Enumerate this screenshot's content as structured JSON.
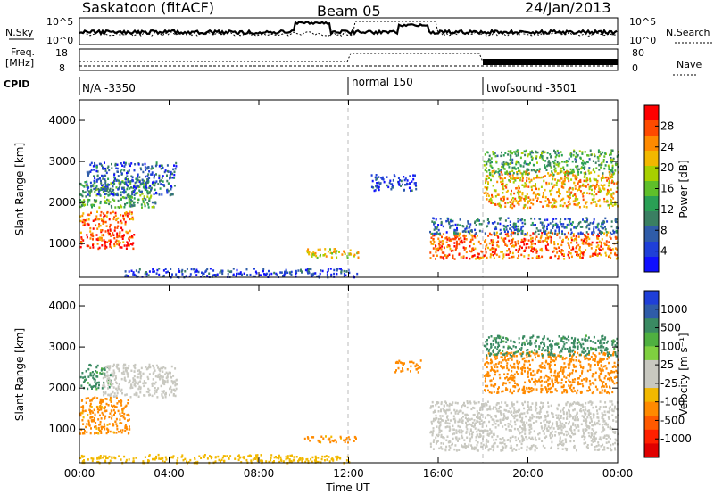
{
  "header": {
    "station": "Saskatoon (fitACF)",
    "beam": "Beam 05",
    "date": "24/Jan/2013"
  },
  "top_panels": {
    "nsky_label": "N.Sky",
    "nsky_ticks": [
      "10^5",
      "10^0"
    ],
    "nsearch_label": "N.Search",
    "nsearch_ticks": [
      "10^5",
      "10^0"
    ],
    "freq_label": "Freq.",
    "freq_unit": "[MHz]",
    "freq_ticks": [
      "18",
      "8"
    ],
    "nave_label": "Nave",
    "nave_ticks": [
      "80",
      "0"
    ],
    "cpid_label": "CPID",
    "cpid_segments": [
      {
        "label": "N/A -3350",
        "start_h": 0,
        "end_h": 12
      },
      {
        "label": "normal 150",
        "start_h": 12,
        "end_h": 18
      },
      {
        "label": "twofsound -3501",
        "start_h": 18,
        "end_h": 24
      }
    ]
  },
  "chart_data": [
    {
      "type": "heatmap",
      "name": "power",
      "ylabel": "Slant Range [km]",
      "ylim": [
        180,
        4500
      ],
      "xlim": [
        0,
        24
      ],
      "y_ticks": [
        1000,
        2000,
        3000,
        4000
      ],
      "colorbar_label": "Power [dB]",
      "colorbar_ticks": [
        "28",
        "24",
        "20",
        "16",
        "12",
        "8",
        "4"
      ],
      "colorbar_colors": [
        "#ff0000",
        "#ff4a00",
        "#ff8a00",
        "#f2b800",
        "#a8d000",
        "#5fbf2a",
        "#2aa055",
        "#3a7f62",
        "#2f5ca8",
        "#1f3fd8",
        "#1010ff"
      ],
      "regions": [
        {
          "x": [
            0.0,
            2.4
          ],
          "y": [
            900,
            1800
          ],
          "value": 26
        },
        {
          "x": [
            0.0,
            3.4
          ],
          "y": [
            1900,
            2600
          ],
          "value": 14
        },
        {
          "x": [
            0.3,
            4.3
          ],
          "y": [
            2200,
            3000
          ],
          "value": 8
        },
        {
          "x": [
            2.0,
            12.5
          ],
          "y": [
            200,
            420
          ],
          "value": 6
        },
        {
          "x": [
            10.0,
            12.4
          ],
          "y": [
            680,
            900
          ],
          "value": 20
        },
        {
          "x": [
            13.0,
            15.0
          ],
          "y": [
            2300,
            2700
          ],
          "value": 6
        },
        {
          "x": [
            15.6,
            24.0
          ],
          "y": [
            650,
            1300
          ],
          "value": 25
        },
        {
          "x": [
            15.6,
            24.0
          ],
          "y": [
            1250,
            1650
          ],
          "value": 9
        },
        {
          "x": [
            18.0,
            24.0
          ],
          "y": [
            1900,
            2800
          ],
          "value": 22
        },
        {
          "x": [
            18.0,
            24.0
          ],
          "y": [
            2700,
            3300
          ],
          "value": 14
        }
      ]
    },
    {
      "type": "heatmap",
      "name": "velocity",
      "ylabel": "Slant Range [km]",
      "xlabel": "Time UT",
      "ylim": [
        180,
        4500
      ],
      "xlim": [
        0,
        24
      ],
      "y_ticks": [
        1000,
        2000,
        3000,
        4000
      ],
      "x_tick_labels": [
        "00:00",
        "04:00",
        "08:00",
        "12:00",
        "16:00",
        "20:00",
        "00:00"
      ],
      "x_tick_hours": [
        0,
        4,
        8,
        12,
        16,
        20,
        24
      ],
      "colorbar_label": "Velocity [m s⁻¹]",
      "colorbar_ticks": [
        "1000",
        "500",
        "100",
        "25",
        "-25",
        "-100",
        "-500",
        "-1000"
      ],
      "colorbar_colors": [
        "#1f3fd8",
        "#2f5ca8",
        "#3a8a62",
        "#4fb040",
        "#7fd040",
        "#c8c8c0",
        "#c8c8c0",
        "#f2b800",
        "#ff8a00",
        "#ff5a00",
        "#ff2000",
        "#e00000"
      ],
      "regions": [
        {
          "x": [
            0.0,
            2.2
          ],
          "y": [
            900,
            1800
          ],
          "value": -150
        },
        {
          "x": [
            0.0,
            1.4
          ],
          "y": [
            2000,
            2600
          ],
          "value": 150
        },
        {
          "x": [
            1.0,
            4.3
          ],
          "y": [
            1800,
            2600
          ],
          "value": 0
        },
        {
          "x": [
            0.0,
            12.0
          ],
          "y": [
            200,
            400
          ],
          "value": -50
        },
        {
          "x": [
            10.0,
            12.3
          ],
          "y": [
            700,
            850
          ],
          "value": -150
        },
        {
          "x": [
            14.0,
            15.2
          ],
          "y": [
            2400,
            2700
          ],
          "value": -150
        },
        {
          "x": [
            15.6,
            24.0
          ],
          "y": [
            500,
            1700
          ],
          "value": 0
        },
        {
          "x": [
            18.0,
            24.0
          ],
          "y": [
            1900,
            2900
          ],
          "value": -200
        },
        {
          "x": [
            18.0,
            24.0
          ],
          "y": [
            2800,
            3300
          ],
          "value": 150
        }
      ]
    }
  ]
}
